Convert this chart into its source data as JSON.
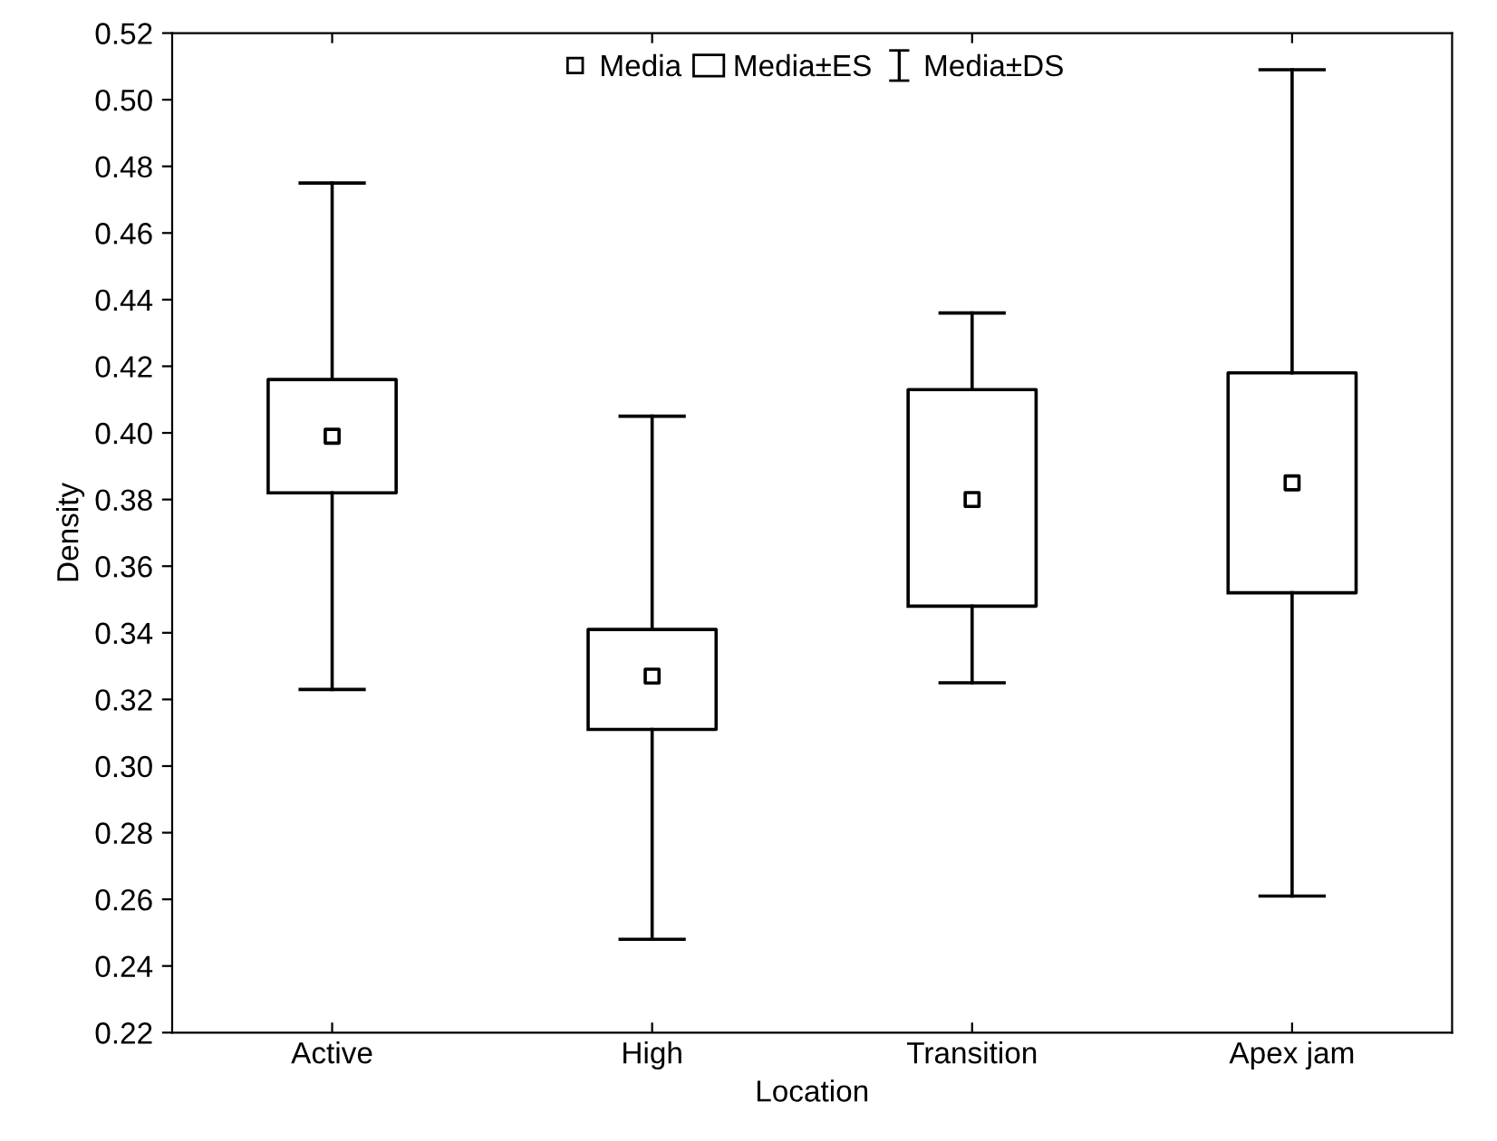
{
  "chart_data": {
    "type": "box",
    "xlabel": "Location",
    "ylabel": "Density",
    "categories": [
      "Active",
      "High",
      "Transition",
      "Apex jam"
    ],
    "boxes": [
      {
        "low": 0.323,
        "q1": 0.382,
        "median": 0.399,
        "q3": 0.416,
        "high": 0.475
      },
      {
        "low": 0.248,
        "q1": 0.311,
        "median": 0.327,
        "q3": 0.341,
        "high": 0.405
      },
      {
        "low": 0.325,
        "q1": 0.348,
        "median": 0.38,
        "q3": 0.413,
        "high": 0.436
      },
      {
        "low": 0.261,
        "q1": 0.352,
        "median": 0.385,
        "q3": 0.418,
        "high": 0.509
      }
    ],
    "annotations": [
      "Media",
      "Media±ES",
      "Media±DS"
    ],
    "ylim": [
      0.22,
      0.52
    ],
    "yticks": [
      {
        "value": 0.22,
        "label": "0.22"
      },
      {
        "value": 0.24,
        "label": "0.24"
      },
      {
        "value": 0.26,
        "label": "0.26"
      },
      {
        "value": 0.28,
        "label": "0.28"
      },
      {
        "value": 0.3,
        "label": "0.30"
      },
      {
        "value": 0.32,
        "label": "0.32"
      },
      {
        "value": 0.34,
        "label": "0.34"
      },
      {
        "value": 0.36,
        "label": "0.36"
      },
      {
        "value": 0.38,
        "label": "0.38"
      },
      {
        "value": 0.4,
        "label": "0.40"
      },
      {
        "value": 0.42,
        "label": "0.42"
      },
      {
        "value": 0.44,
        "label": "0.44"
      },
      {
        "value": 0.46,
        "label": "0.46"
      },
      {
        "value": 0.48,
        "label": "0.48"
      },
      {
        "value": 0.5,
        "label": "0.50"
      },
      {
        "value": 0.52,
        "label": "0.52"
      }
    ],
    "marker": "square"
  }
}
